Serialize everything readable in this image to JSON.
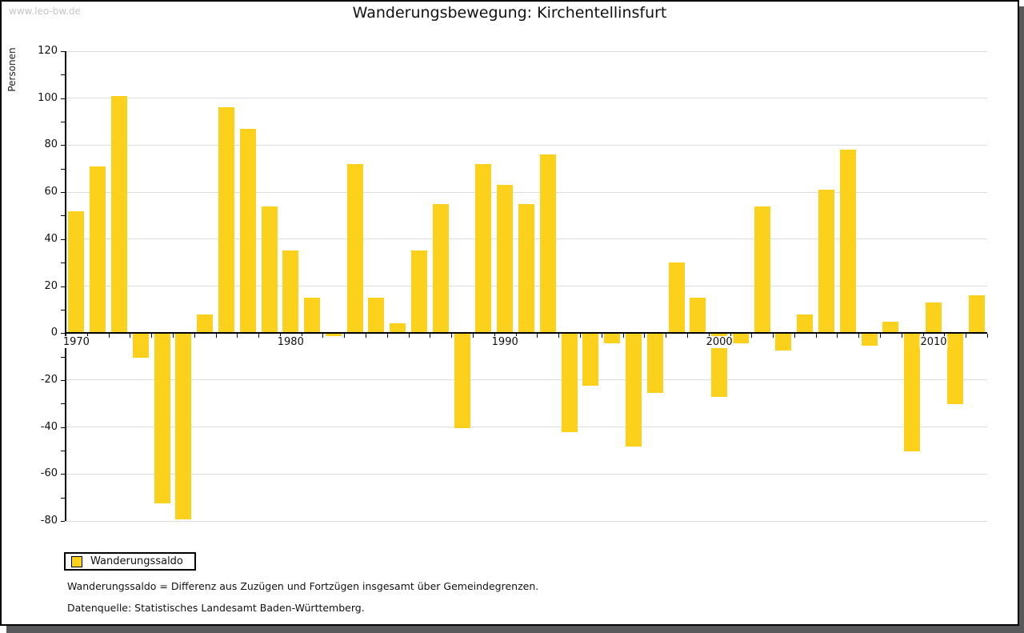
{
  "watermark": "www.leo-bw.de",
  "title": "Wanderungsbewegung: Kirchentellinsfurt",
  "legend": {
    "label": "Wanderungssaldo"
  },
  "footnotes": {
    "line1": "Wanderungssaldo = Differenz aus Zuzügen und Fortzügen insgesamt über Gemeindegrenzen.",
    "line2": "Datenquelle: Statistisches Landesamt Baden-Württemberg."
  },
  "colors": {
    "bar": "#fcd11c",
    "grid": "#dcdcdc",
    "axis": "#000000",
    "watermark": "#c6c6c6",
    "shadow": "#59595b"
  },
  "chart_data": {
    "type": "bar",
    "title": "Wanderungsbewegung: Kirchentellinsfurt",
    "xlabel": "",
    "ylabel": "Personen",
    "ylim": [
      -80,
      120
    ],
    "y_major_step": 20,
    "y_minor_step": 10,
    "y_tick_labels": [
      "120",
      "100",
      "80",
      "60",
      "40",
      "20",
      "0",
      "-20",
      "-40",
      "-60",
      "-80"
    ],
    "x_tick_years": [
      1970,
      1980,
      1990,
      2000,
      2010
    ],
    "grid": true,
    "legend_position": "bottom-left",
    "series": [
      {
        "name": "Wanderungssaldo",
        "x": [
          1970,
          1971,
          1972,
          1973,
          1974,
          1975,
          1976,
          1977,
          1978,
          1979,
          1980,
          1981,
          1982,
          1983,
          1984,
          1985,
          1986,
          1987,
          1988,
          1989,
          1990,
          1991,
          1992,
          1993,
          1994,
          1995,
          1996,
          1997,
          1998,
          1999,
          2000,
          2001,
          2002,
          2003,
          2004,
          2005,
          2006,
          2007,
          2008,
          2009,
          2010,
          2011,
          2012
        ],
        "values": [
          52,
          71,
          101,
          -10,
          -72,
          -79,
          8,
          96,
          87,
          54,
          35,
          15,
          -1,
          72,
          15,
          4,
          35,
          55,
          -40,
          72,
          63,
          55,
          76,
          -42,
          -22,
          -4,
          -48,
          -25,
          30,
          15,
          -27,
          -4,
          54,
          -7,
          8,
          61,
          78,
          -5,
          5,
          -50,
          13,
          -30,
          16
        ]
      }
    ]
  }
}
